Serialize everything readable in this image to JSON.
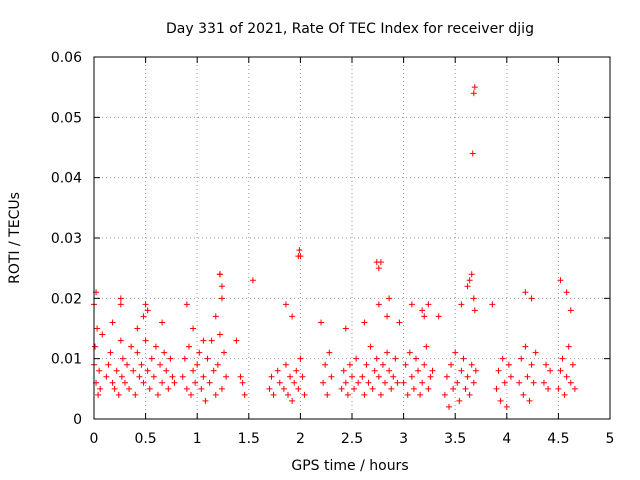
{
  "chart_data": {
    "type": "scatter",
    "title": "Day 331 of 2021, Rate Of TEC Index for receiver djig",
    "xlabel": "GPS time / hours",
    "ylabel": "ROTI / TECUs",
    "xlim": [
      0,
      5
    ],
    "ylim": [
      0,
      0.06
    ],
    "x_ticks": [
      0,
      0.5,
      1,
      1.5,
      2,
      2.5,
      3,
      3.5,
      4,
      4.5,
      5
    ],
    "x_tick_labels": [
      "0",
      "0.5",
      "1",
      "1.5",
      "2",
      "2.5",
      "3",
      "3.5",
      "4",
      "4.5",
      "5"
    ],
    "y_ticks": [
      0,
      0.01,
      0.02,
      0.03,
      0.04,
      0.05,
      0.06
    ],
    "y_tick_labels": [
      "0",
      "0.01",
      "0.02",
      "0.03",
      "0.04",
      "0.05",
      "0.06"
    ],
    "grid": true,
    "marker": "+",
    "color": "#ff0000",
    "series": [
      {
        "name": "ROTI",
        "x": [
          0.0,
          0.01,
          0.02,
          0.03,
          0.04,
          0.05,
          0.06,
          0.12,
          0.14,
          0.16,
          0.18,
          0.2,
          0.22,
          0.24,
          0.26,
          0.27,
          0.28,
          0.3,
          0.32,
          0.34,
          0.36,
          0.38,
          0.4,
          0.42,
          0.44,
          0.46,
          0.48,
          0.5,
          0.52,
          0.54,
          0.56,
          0.58,
          0.6,
          0.62,
          0.64,
          0.66,
          0.68,
          0.7,
          0.72,
          0.74,
          0.76,
          0.78,
          0.86,
          0.88,
          0.9,
          0.92,
          0.94,
          0.96,
          0.98,
          1.0,
          1.02,
          1.04,
          1.06,
          1.08,
          1.1,
          1.12,
          1.14,
          1.16,
          1.18,
          1.2,
          1.22,
          1.24,
          1.26,
          1.28,
          1.38,
          1.42,
          1.44,
          1.46,
          1.7,
          1.72,
          1.74,
          1.78,
          1.8,
          1.84,
          1.86,
          1.88,
          1.9,
          1.92,
          1.94,
          1.96,
          1.98,
          2.0,
          2.02,
          2.04,
          2.22,
          2.24,
          2.26,
          2.28,
          2.3,
          2.4,
          2.42,
          2.44,
          2.46,
          2.48,
          2.5,
          2.52,
          2.54,
          2.56,
          2.6,
          2.62,
          2.64,
          2.66,
          2.68,
          2.7,
          2.72,
          2.74,
          2.76,
          2.78,
          2.8,
          2.82,
          2.84,
          2.86,
          2.88,
          2.9,
          2.92,
          2.94,
          3.0,
          3.02,
          3.04,
          3.06,
          3.08,
          3.1,
          3.12,
          3.14,
          3.16,
          3.18,
          3.2,
          3.22,
          3.24,
          3.26,
          3.28,
          3.4,
          3.42,
          3.44,
          3.46,
          3.48,
          3.5,
          3.52,
          3.54,
          3.56,
          3.58,
          3.6,
          3.62,
          3.64,
          3.66,
          3.68,
          3.7,
          3.9,
          3.92,
          3.94,
          3.96,
          3.98,
          4.0,
          4.02,
          4.04,
          4.12,
          4.14,
          4.16,
          4.18,
          4.2,
          4.22,
          4.24,
          4.26,
          4.28,
          4.36,
          4.38,
          4.4,
          4.42,
          4.5,
          4.52,
          4.54,
          4.56,
          4.58,
          4.6,
          4.62,
          4.64,
          4.66,
          0.02,
          0.08,
          0.18,
          0.26,
          0.42,
          0.48,
          0.52,
          0.66,
          0.9,
          0.96,
          1.06,
          1.18,
          1.22,
          1.24,
          1.54,
          1.86,
          1.92,
          2.2,
          2.44,
          2.62,
          2.76,
          2.84,
          2.96,
          3.08,
          3.18,
          3.24,
          3.34,
          3.56,
          3.62,
          3.64,
          3.66,
          3.68,
          3.69,
          3.86,
          4.18,
          4.24,
          4.52,
          4.58,
          4.62,
          3.68,
          3.69,
          3.67,
          1.98,
          2.0,
          1.99,
          2.74,
          2.76,
          2.78,
          1.22,
          1.24,
          0.0,
          0.26,
          0.5,
          2.86,
          3.2
        ],
        "y": [
          0.009,
          0.012,
          0.006,
          0.015,
          0.004,
          0.008,
          0.005,
          0.007,
          0.009,
          0.011,
          0.006,
          0.005,
          0.008,
          0.004,
          0.013,
          0.007,
          0.01,
          0.006,
          0.009,
          0.005,
          0.012,
          0.008,
          0.004,
          0.011,
          0.007,
          0.009,
          0.006,
          0.013,
          0.008,
          0.005,
          0.01,
          0.007,
          0.012,
          0.004,
          0.009,
          0.006,
          0.011,
          0.008,
          0.005,
          0.01,
          0.007,
          0.006,
          0.007,
          0.01,
          0.005,
          0.012,
          0.004,
          0.008,
          0.006,
          0.009,
          0.011,
          0.005,
          0.007,
          0.003,
          0.01,
          0.006,
          0.013,
          0.008,
          0.004,
          0.009,
          0.014,
          0.005,
          0.011,
          0.007,
          0.013,
          0.007,
          0.006,
          0.004,
          0.005,
          0.007,
          0.004,
          0.008,
          0.006,
          0.005,
          0.009,
          0.004,
          0.007,
          0.003,
          0.006,
          0.008,
          0.005,
          0.01,
          0.007,
          0.004,
          0.006,
          0.009,
          0.004,
          0.011,
          0.007,
          0.005,
          0.008,
          0.006,
          0.004,
          0.009,
          0.007,
          0.005,
          0.01,
          0.006,
          0.007,
          0.004,
          0.009,
          0.006,
          0.012,
          0.005,
          0.008,
          0.01,
          0.007,
          0.004,
          0.009,
          0.006,
          0.011,
          0.008,
          0.005,
          0.007,
          0.01,
          0.006,
          0.006,
          0.009,
          0.004,
          0.011,
          0.007,
          0.005,
          0.01,
          0.008,
          0.004,
          0.006,
          0.009,
          0.012,
          0.005,
          0.007,
          0.008,
          0.004,
          0.007,
          0.002,
          0.009,
          0.005,
          0.011,
          0.006,
          0.003,
          0.008,
          0.01,
          0.005,
          0.007,
          0.004,
          0.009,
          0.006,
          0.008,
          0.005,
          0.008,
          0.003,
          0.01,
          0.006,
          0.002,
          0.009,
          0.007,
          0.006,
          0.01,
          0.004,
          0.012,
          0.007,
          0.003,
          0.009,
          0.006,
          0.011,
          0.006,
          0.009,
          0.005,
          0.008,
          0.005,
          0.008,
          0.01,
          0.004,
          0.007,
          0.012,
          0.006,
          0.009,
          0.005,
          0.021,
          0.014,
          0.016,
          0.019,
          0.015,
          0.017,
          0.018,
          0.016,
          0.019,
          0.015,
          0.013,
          0.017,
          0.024,
          0.02,
          0.023,
          0.019,
          0.017,
          0.016,
          0.015,
          0.016,
          0.019,
          0.017,
          0.016,
          0.019,
          0.018,
          0.019,
          0.017,
          0.019,
          0.022,
          0.023,
          0.024,
          0.02,
          0.018,
          0.019,
          0.021,
          0.02,
          0.023,
          0.021,
          0.018,
          0.054,
          0.055,
          0.044,
          0.027,
          0.027,
          0.028,
          0.026,
          0.025,
          0.026,
          0.024,
          0.022,
          0.019,
          0.02,
          0.019,
          0.02,
          0.017
        ]
      }
    ]
  }
}
